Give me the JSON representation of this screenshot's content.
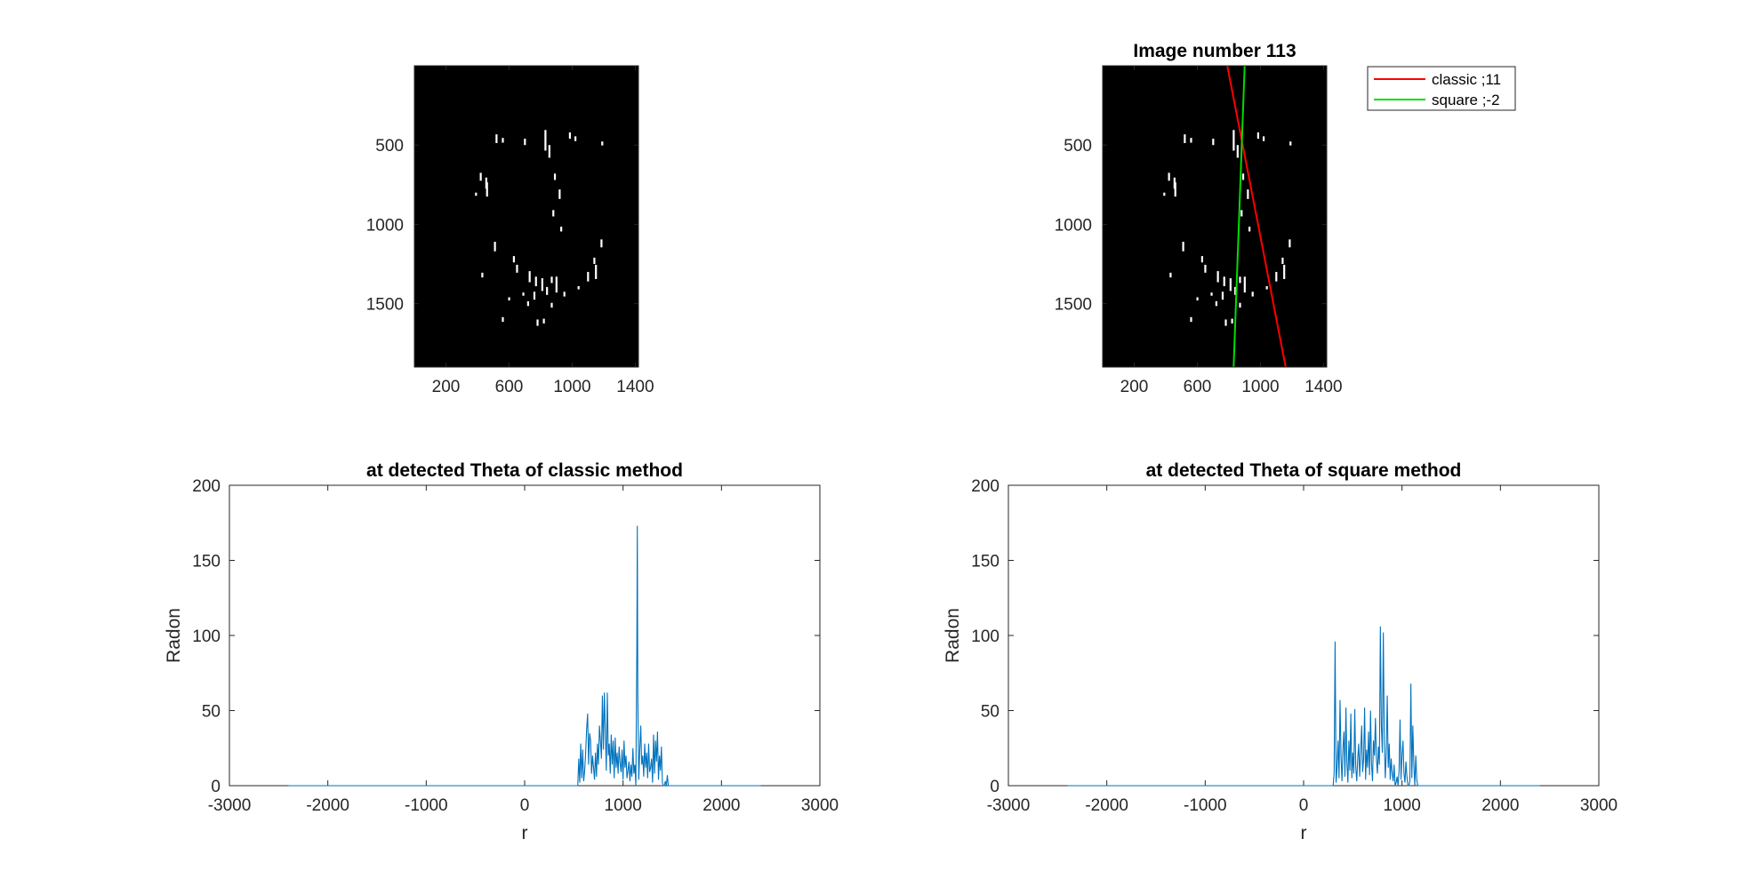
{
  "colors": {
    "trace": "#0072BD",
    "classic_line": "#FF0000",
    "square_line": "#00DD00",
    "image_bg": "#000000",
    "speckle": "#FFFFFF"
  },
  "chart_data": [
    {
      "type": "image",
      "title": "",
      "xticks": [
        "200",
        "600",
        "1000",
        "1400"
      ],
      "yticks": [
        "500",
        "1000",
        "1500"
      ],
      "xlim": [
        0,
        1420
      ],
      "ylim": [
        0,
        1900
      ],
      "blobs": [
        {
          "x": 520,
          "y": 460,
          "h": 55
        },
        {
          "x": 560,
          "y": 470,
          "h": 30
        },
        {
          "x": 700,
          "y": 480,
          "h": 40
        },
        {
          "x": 830,
          "y": 470,
          "h": 130
        },
        {
          "x": 855,
          "y": 540,
          "h": 80
        },
        {
          "x": 985,
          "y": 440,
          "h": 40
        },
        {
          "x": 1020,
          "y": 460,
          "h": 30
        },
        {
          "x": 1190,
          "y": 490,
          "h": 25
        },
        {
          "x": 420,
          "y": 700,
          "h": 50
        },
        {
          "x": 455,
          "y": 740,
          "h": 70
        },
        {
          "x": 460,
          "y": 780,
          "h": 90
        },
        {
          "x": 390,
          "y": 810,
          "h": 20
        },
        {
          "x": 890,
          "y": 700,
          "h": 40
        },
        {
          "x": 920,
          "y": 810,
          "h": 60
        },
        {
          "x": 880,
          "y": 930,
          "h": 40
        },
        {
          "x": 930,
          "y": 1030,
          "h": 30
        },
        {
          "x": 510,
          "y": 1140,
          "h": 60
        },
        {
          "x": 1185,
          "y": 1120,
          "h": 50
        },
        {
          "x": 630,
          "y": 1220,
          "h": 40
        },
        {
          "x": 650,
          "y": 1280,
          "h": 50
        },
        {
          "x": 1140,
          "y": 1230,
          "h": 40
        },
        {
          "x": 1150,
          "y": 1300,
          "h": 90
        },
        {
          "x": 1100,
          "y": 1330,
          "h": 60
        },
        {
          "x": 430,
          "y": 1320,
          "h": 30
        },
        {
          "x": 730,
          "y": 1330,
          "h": 70
        },
        {
          "x": 770,
          "y": 1360,
          "h": 60
        },
        {
          "x": 810,
          "y": 1380,
          "h": 80
        },
        {
          "x": 840,
          "y": 1420,
          "h": 50
        },
        {
          "x": 870,
          "y": 1350,
          "h": 40
        },
        {
          "x": 900,
          "y": 1380,
          "h": 100
        },
        {
          "x": 760,
          "y": 1450,
          "h": 50
        },
        {
          "x": 720,
          "y": 1500,
          "h": 30
        },
        {
          "x": 690,
          "y": 1440,
          "h": 20
        },
        {
          "x": 600,
          "y": 1470,
          "h": 20
        },
        {
          "x": 950,
          "y": 1440,
          "h": 30
        },
        {
          "x": 1040,
          "y": 1400,
          "h": 20
        },
        {
          "x": 560,
          "y": 1600,
          "h": 30
        },
        {
          "x": 780,
          "y": 1620,
          "h": 40
        },
        {
          "x": 820,
          "y": 1610,
          "h": 30
        },
        {
          "x": 870,
          "y": 1510,
          "h": 30
        }
      ]
    },
    {
      "type": "image",
      "title": "Image number 113",
      "xticks": [
        "200",
        "600",
        "1000",
        "1400"
      ],
      "yticks": [
        "500",
        "1000",
        "1500"
      ],
      "xlim": [
        0,
        1420
      ],
      "ylim": [
        0,
        1900
      ],
      "lines": [
        {
          "name": "classic ;11",
          "color": "#FF0000",
          "x": [
            790,
            1160
          ],
          "y": [
            0,
            1900
          ]
        },
        {
          "name": "square ;-2",
          "color": "#00DD00",
          "x": [
            900,
            830
          ],
          "y": [
            0,
            1900
          ]
        }
      ],
      "legend": [
        "classic ;11",
        "square ;-2"
      ],
      "legend_placement": "outside top-right"
    },
    {
      "type": "line",
      "title": "at detected Theta of classic method",
      "xlabel": "r",
      "ylabel": "Radon",
      "xlim": [
        -3000,
        3000
      ],
      "ylim": [
        0,
        200
      ],
      "xticks": [
        "-3000",
        "-2000",
        "-1000",
        "0",
        "1000",
        "2000",
        "3000"
      ],
      "yticks": [
        "0",
        "50",
        "100",
        "150",
        "200"
      ],
      "baseline_range": [
        -2400,
        2400
      ],
      "x": [
        540,
        550,
        560,
        570,
        580,
        590,
        600,
        610,
        620,
        630,
        640,
        650,
        660,
        670,
        680,
        690,
        700,
        710,
        720,
        730,
        740,
        750,
        760,
        770,
        780,
        790,
        800,
        810,
        820,
        830,
        840,
        850,
        860,
        870,
        880,
        890,
        900,
        910,
        920,
        930,
        940,
        950,
        960,
        970,
        980,
        990,
        1000,
        1010,
        1020,
        1030,
        1040,
        1050,
        1060,
        1070,
        1080,
        1090,
        1100,
        1110,
        1120,
        1130,
        1140,
        1145,
        1150,
        1160,
        1170,
        1180,
        1190,
        1200,
        1210,
        1220,
        1230,
        1240,
        1250,
        1260,
        1270,
        1280,
        1290,
        1300,
        1310,
        1320,
        1330,
        1340,
        1350,
        1360,
        1370,
        1380,
        1390,
        1400,
        1410,
        1420,
        1430,
        1440,
        1450,
        1460,
        1470
      ],
      "y": [
        0,
        18,
        2,
        28,
        5,
        24,
        3,
        10,
        22,
        38,
        48,
        14,
        35,
        30,
        8,
        20,
        12,
        4,
        22,
        6,
        28,
        14,
        40,
        30,
        18,
        60,
        24,
        62,
        36,
        10,
        62,
        20,
        28,
        8,
        34,
        14,
        30,
        5,
        32,
        12,
        22,
        8,
        26,
        15,
        9,
        24,
        4,
        30,
        12,
        20,
        5,
        10,
        16,
        3,
        14,
        6,
        25,
        8,
        14,
        0,
        90,
        173,
        60,
        4,
        24,
        40,
        14,
        20,
        6,
        28,
        12,
        22,
        5,
        28,
        9,
        12,
        18,
        2,
        34,
        8,
        30,
        16,
        36,
        4,
        20,
        10,
        26,
        2,
        0,
        0,
        3,
        0,
        7,
        0,
        0
      ]
    },
    {
      "type": "line",
      "title": "at detected Theta of square method",
      "xlabel": "r",
      "ylabel": "Radon",
      "xlim": [
        -3000,
        3000
      ],
      "ylim": [
        0,
        200
      ],
      "xticks": [
        "-3000",
        "-2000",
        "-1000",
        "0",
        "1000",
        "2000",
        "3000"
      ],
      "yticks": [
        "0",
        "50",
        "100",
        "150",
        "200"
      ],
      "baseline_range": [
        -2400,
        2400
      ],
      "x": [
        300,
        310,
        320,
        330,
        340,
        350,
        360,
        370,
        380,
        390,
        400,
        410,
        420,
        430,
        440,
        450,
        460,
        470,
        480,
        490,
        500,
        510,
        520,
        530,
        540,
        550,
        560,
        570,
        580,
        590,
        600,
        610,
        620,
        630,
        640,
        650,
        660,
        670,
        680,
        690,
        700,
        710,
        720,
        730,
        740,
        750,
        760,
        770,
        780,
        790,
        800,
        810,
        820,
        830,
        840,
        850,
        860,
        870,
        880,
        890,
        900,
        910,
        920,
        930,
        940,
        950,
        960,
        970,
        980,
        990,
        1000,
        1010,
        1020,
        1030,
        1040,
        1050,
        1060,
        1070,
        1080,
        1090,
        1100,
        1110,
        1120,
        1130,
        1140,
        1150,
        1160,
        1170
      ],
      "y": [
        0,
        8,
        96,
        2,
        12,
        30,
        5,
        57,
        20,
        3,
        25,
        36,
        6,
        52,
        15,
        2,
        30,
        10,
        48,
        5,
        22,
        8,
        51,
        12,
        3,
        18,
        28,
        6,
        22,
        40,
        9,
        18,
        52,
        4,
        24,
        12,
        36,
        7,
        50,
        15,
        3,
        30,
        20,
        45,
        18,
        8,
        26,
        14,
        106,
        40,
        22,
        102,
        30,
        5,
        22,
        60,
        12,
        28,
        4,
        18,
        8,
        3,
        14,
        0,
        2,
        6,
        0,
        10,
        44,
        4,
        20,
        30,
        8,
        2,
        16,
        6,
        0,
        0,
        3,
        68,
        5,
        40,
        14,
        0,
        20,
        4,
        0,
        0
      ]
    }
  ]
}
